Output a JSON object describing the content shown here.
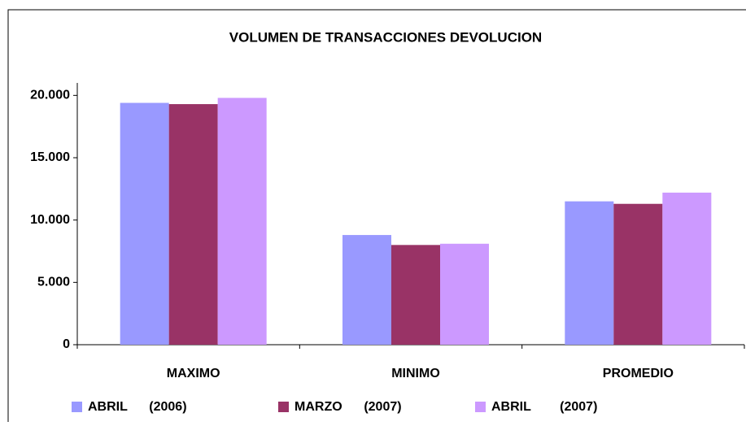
{
  "chart_data": {
    "type": "bar",
    "title": "VOLUMEN DE TRANSACCIONES DEVOLUCION",
    "categories": [
      "MAXIMO",
      "MINIMO",
      "PROMEDIO"
    ],
    "series": [
      {
        "name": "ABRIL      (2006)",
        "color": "#9999ff",
        "values": [
          19400,
          8800,
          11500
        ]
      },
      {
        "name": "MARZO      (2007)",
        "color": "#993366",
        "values": [
          19300,
          8000,
          11300
        ]
      },
      {
        "name": "ABRIL        (2007)",
        "color": "#cc99ff",
        "values": [
          19800,
          8100,
          12200
        ]
      }
    ],
    "ylim": [
      0,
      21000
    ],
    "yticks": [
      0,
      {
        "value": 5000,
        "label": "5.000"
      },
      {
        "value": 10000,
        "label": "10.000"
      },
      {
        "value": 15000,
        "label": "15.000"
      },
      {
        "value": 20000,
        "label": "20.000"
      }
    ],
    "legend": "bottom"
  }
}
